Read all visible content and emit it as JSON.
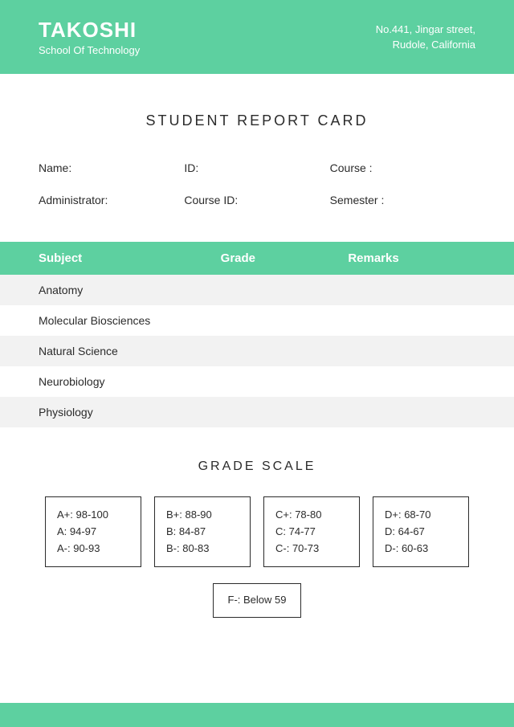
{
  "colors": {
    "accent": "#5dd0a0",
    "text": "#2b2b2b",
    "row_alt": "#f2f2f2",
    "background": "#ffffff"
  },
  "header": {
    "school_name": "TAKOSHI",
    "subtitle": "School Of Technology",
    "address_line1": "No.441, Jingar street,",
    "address_line2": "Rudole, California"
  },
  "title": "STUDENT REPORT CARD",
  "info": {
    "name": "Name:",
    "id": "ID:",
    "course": "Course :",
    "administrator": "Administrator:",
    "course_id": "Course ID:",
    "semester": "Semester :"
  },
  "table": {
    "columns": {
      "subject": "Subject",
      "grade": "Grade",
      "remarks": "Remarks"
    },
    "rows": [
      {
        "subject": "Anatomy",
        "grade": "",
        "remarks": ""
      },
      {
        "subject": "Molecular Biosciences",
        "grade": "",
        "remarks": ""
      },
      {
        "subject": "Natural Science",
        "grade": "",
        "remarks": ""
      },
      {
        "subject": "Neurobiology",
        "grade": "",
        "remarks": ""
      },
      {
        "subject": "Physiology",
        "grade": "",
        "remarks": ""
      }
    ]
  },
  "grade_scale": {
    "title": "GRADE SCALE",
    "boxes": [
      [
        "A+: 98-100",
        "A: 94-97",
        "A-: 90-93"
      ],
      [
        "B+: 88-90",
        "B: 84-87",
        "B-: 80-83"
      ],
      [
        "C+: 78-80",
        "C: 74-77",
        "C-: 70-73"
      ],
      [
        "D+: 68-70",
        "D: 64-67",
        "D-: 60-63"
      ]
    ],
    "single": "F-: Below 59"
  }
}
